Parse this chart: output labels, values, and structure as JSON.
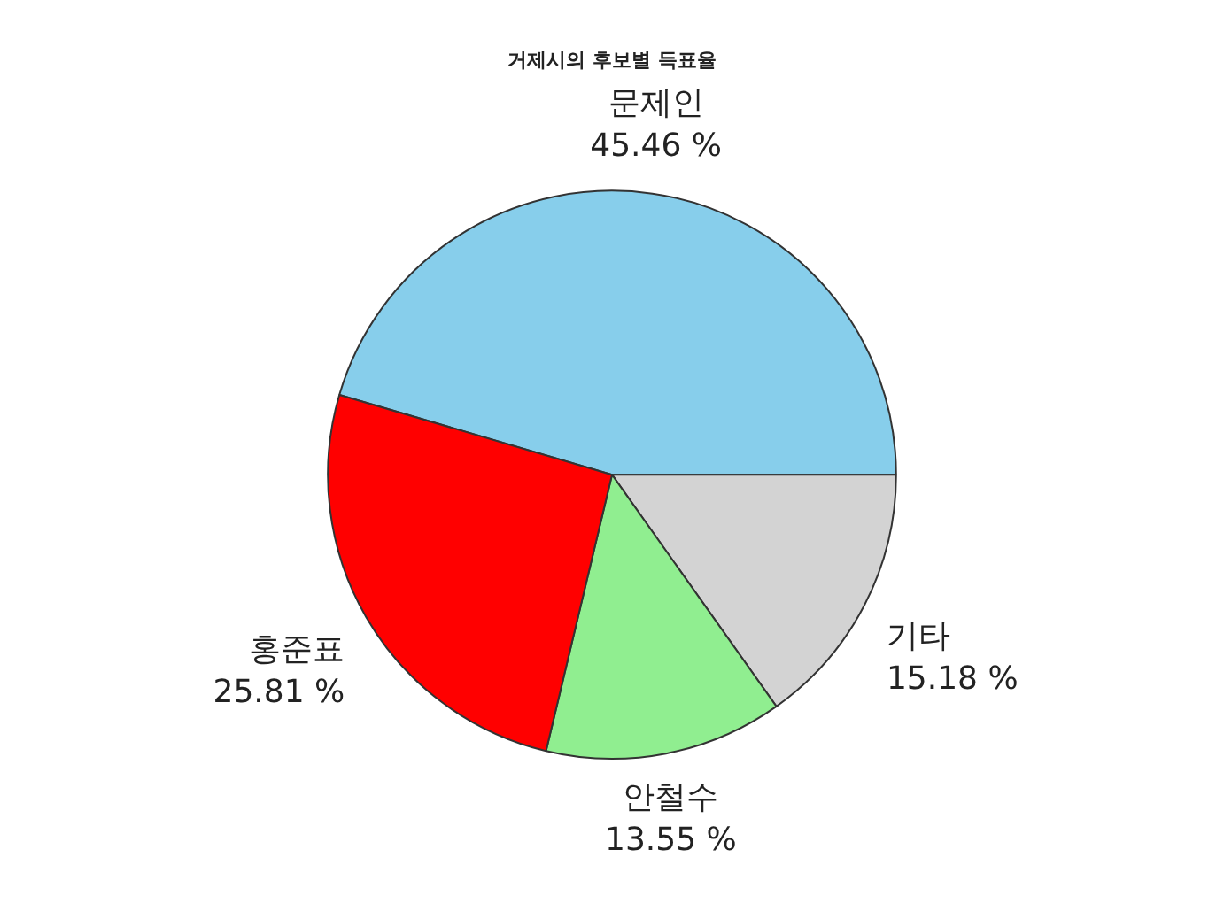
{
  "chart_data": {
    "type": "pie",
    "title": "거제시의 후보별 득표율",
    "categories": [
      "문제인",
      "기타",
      "안철수",
      "홍준표"
    ],
    "values": [
      45.46,
      15.18,
      13.55,
      25.81
    ],
    "colors": [
      "#87ceeb",
      "#d3d3d3",
      "#90ee90",
      "#ff0000"
    ],
    "value_labels": [
      "45.46 %",
      "15.18 %",
      "13.55 %",
      "25.81 %"
    ],
    "legend": false
  }
}
